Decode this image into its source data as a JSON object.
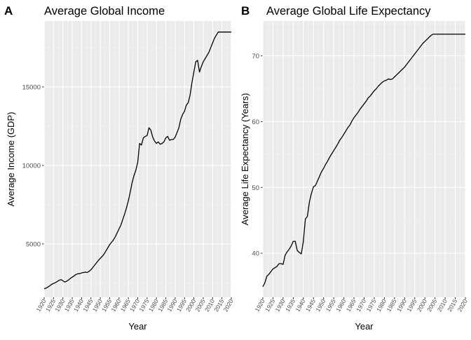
{
  "chart_data": [
    {
      "panel_tag": "A",
      "type": "line",
      "title": "Average Global Income",
      "xlabel": "Year",
      "ylabel": "Average Income (GDP)",
      "xlim": [
        1920,
        2020
      ],
      "ylim": [
        1600,
        19200
      ],
      "x_ticks": [
        1920,
        1925,
        1930,
        1935,
        1940,
        1945,
        1950,
        1955,
        1960,
        1965,
        1970,
        1975,
        1980,
        1985,
        1990,
        1995,
        2000,
        2005,
        2010,
        2015,
        2020
      ],
      "y_ticks": [
        5000,
        10000,
        15000
      ],
      "grid": true,
      "series": [
        {
          "x": [
            1920,
            1921,
            1922,
            1923,
            1924,
            1925,
            1926,
            1927,
            1928,
            1929,
            1930,
            1931,
            1932,
            1933,
            1934,
            1935,
            1936,
            1937,
            1938,
            1939,
            1940,
            1941,
            1942,
            1943,
            1944,
            1945,
            1946,
            1947,
            1948,
            1949,
            1950,
            1951,
            1952,
            1953,
            1954,
            1955,
            1956,
            1957,
            1958,
            1959,
            1960,
            1961,
            1962,
            1963,
            1964,
            1965,
            1966,
            1967,
            1968,
            1969,
            1970,
            1971,
            1972,
            1973,
            1974,
            1975,
            1976,
            1977,
            1978,
            1979,
            1980,
            1981,
            1982,
            1983,
            1984,
            1985,
            1986,
            1987,
            1988,
            1989,
            1990,
            1991,
            1992,
            1993,
            1994,
            1995,
            1996,
            1997,
            1998,
            1999,
            2000,
            2001,
            2002,
            2003,
            2004,
            2005,
            2006,
            2007,
            2008,
            2009,
            2010,
            2011,
            2012,
            2013,
            2014,
            2015,
            2016,
            2017,
            2018,
            2019,
            2020
          ],
          "values": [
            2140,
            2180,
            2250,
            2330,
            2420,
            2480,
            2530,
            2600,
            2680,
            2720,
            2650,
            2570,
            2620,
            2700,
            2800,
            2880,
            2960,
            3050,
            3100,
            3100,
            3150,
            3180,
            3200,
            3180,
            3250,
            3350,
            3500,
            3650,
            3800,
            3950,
            4080,
            4200,
            4350,
            4550,
            4750,
            4950,
            5100,
            5250,
            5450,
            5700,
            5950,
            6200,
            6550,
            6900,
            7300,
            7750,
            8300,
            8900,
            9350,
            9700,
            10200,
            11400,
            11300,
            11750,
            11850,
            11900,
            12400,
            12250,
            11800,
            11550,
            11400,
            11500,
            11350,
            11400,
            11500,
            11750,
            11850,
            11600,
            11650,
            11650,
            11800,
            12100,
            12400,
            12950,
            13250,
            13450,
            13850,
            14000,
            14500,
            15300,
            15950,
            16600,
            16700,
            15950,
            16300,
            16600,
            16800,
            17000,
            17200,
            17500,
            17800,
            18100,
            18300,
            18500,
            18500,
            18500,
            18500,
            18500,
            18500,
            18500,
            18500
          ]
        }
      ]
    },
    {
      "panel_tag": "B",
      "type": "line",
      "title": "Average Global Life Expectancy",
      "xlabel": "Year",
      "ylabel": "Average Life Expectancy (Years)",
      "xlim": [
        1920,
        2020
      ],
      "ylim": [
        33.3,
        75.3
      ],
      "x_ticks": [
        1920,
        1925,
        1930,
        1935,
        1940,
        1945,
        1950,
        1955,
        1960,
        1965,
        1970,
        1975,
        1980,
        1985,
        1990,
        1995,
        2000,
        2005,
        2010,
        2015,
        2020
      ],
      "y_ticks": [
        40,
        50,
        60,
        70
      ],
      "grid": true,
      "series": [
        {
          "x": [
            1920,
            1921,
            1922,
            1923,
            1924,
            1925,
            1926,
            1927,
            1928,
            1929,
            1930,
            1931,
            1932,
            1933,
            1934,
            1935,
            1936,
            1937,
            1938,
            1939,
            1940,
            1941,
            1942,
            1943,
            1944,
            1945,
            1946,
            1947,
            1948,
            1949,
            1950,
            1951,
            1952,
            1953,
            1954,
            1955,
            1956,
            1957,
            1958,
            1959,
            1960,
            1961,
            1962,
            1963,
            1964,
            1965,
            1966,
            1967,
            1968,
            1969,
            1970,
            1971,
            1972,
            1973,
            1974,
            1975,
            1976,
            1977,
            1978,
            1979,
            1980,
            1981,
            1982,
            1983,
            1984,
            1985,
            1986,
            1987,
            1988,
            1989,
            1990,
            1991,
            1992,
            1993,
            1994,
            1995,
            1996,
            1997,
            1998,
            1999,
            2000,
            2001,
            2002,
            2003,
            2004,
            2005,
            2006,
            2007,
            2008,
            2009,
            2010,
            2011,
            2012,
            2013,
            2014,
            2015,
            2016,
            2017,
            2018,
            2019,
            2020
          ],
          "values": [
            34.9,
            35.5,
            36.5,
            36.8,
            37.2,
            37.6,
            37.8,
            38.0,
            38.4,
            38.4,
            38.3,
            39.7,
            40.2,
            40.6,
            41.1,
            41.8,
            41.8,
            40.4,
            40.1,
            39.9,
            41.8,
            45.2,
            45.6,
            47.8,
            49.1,
            50.1,
            50.3,
            51.0,
            51.7,
            52.4,
            52.9,
            53.5,
            54.0,
            54.6,
            55.1,
            55.6,
            56.1,
            56.6,
            57.2,
            57.6,
            58.1,
            58.6,
            59.1,
            59.5,
            60.1,
            60.6,
            61.0,
            61.4,
            61.9,
            62.3,
            62.7,
            63.1,
            63.6,
            63.9,
            64.3,
            64.7,
            65.0,
            65.4,
            65.7,
            66.0,
            66.2,
            66.3,
            66.5,
            66.4,
            66.5,
            66.8,
            67.1,
            67.4,
            67.7,
            68.0,
            68.3,
            68.7,
            69.1,
            69.5,
            69.9,
            70.3,
            70.7,
            71.1,
            71.5,
            71.9,
            72.2,
            72.5,
            72.8,
            73.1,
            73.3,
            73.3,
            73.3,
            73.3,
            73.3,
            73.3,
            73.3,
            73.3,
            73.3,
            73.3,
            73.3,
            73.3,
            73.3,
            73.3,
            73.3,
            73.3,
            73.3
          ]
        }
      ]
    }
  ],
  "colors": {
    "panel_background": "#ebebeb",
    "grid_major": "#ffffff",
    "grid_minor": "#f5f5f5",
    "line": "#000000",
    "tick_text": "#4d4d4d",
    "text": "#000000"
  }
}
